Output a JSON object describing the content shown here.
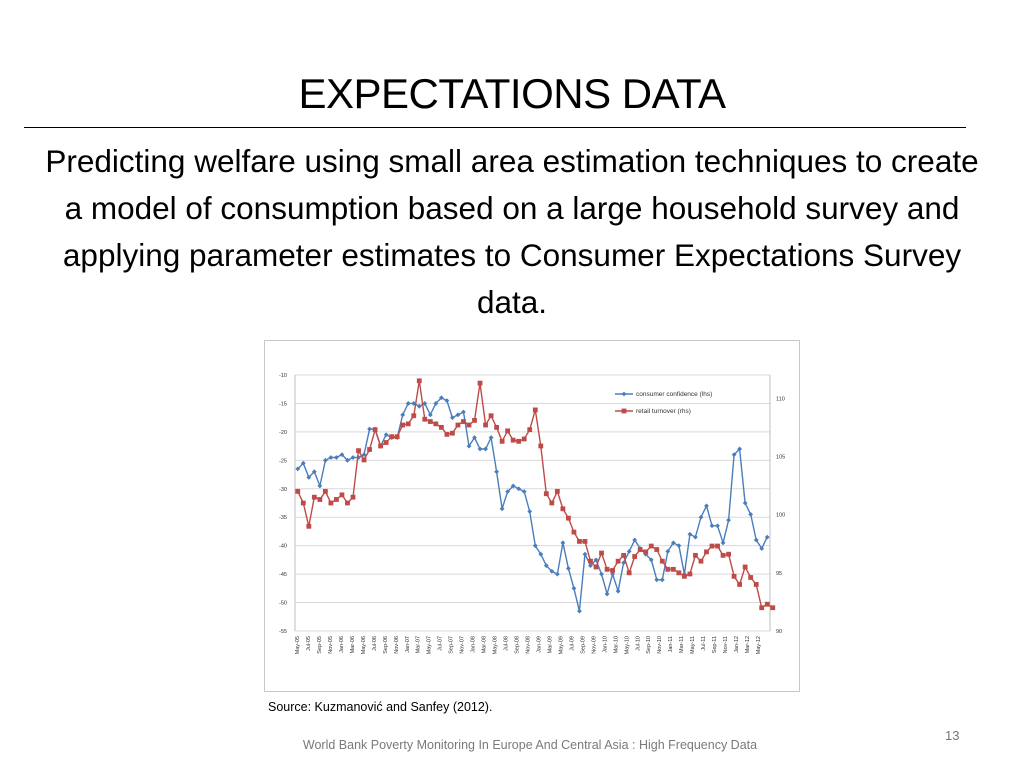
{
  "slide": {
    "title": "EXPECTATIONS DATA",
    "subtitle": "Predicting welfare using small area estimation techniques to create a model of consumption based on a large household survey and applying parameter estimates to Consumer Expectations Survey data.",
    "source": "Source:   Kuzmanović and Sanfey (2012).",
    "page_number": "13",
    "footer": "World Bank Poverty Monitoring In Europe And Central Asia : High Frequency Data"
  },
  "chart_data": {
    "type": "line",
    "x_tick_labels": [
      "May-05",
      "Jul-05",
      "Sep-05",
      "Nov-05",
      "Jan-06",
      "Mar-06",
      "May-06",
      "Jul-06",
      "Sep-06",
      "Nov-06",
      "Jan-07",
      "Mar-07",
      "May-07",
      "Jul-07",
      "Sep-07",
      "Nov-07",
      "Jan-08",
      "Mar-08",
      "May-08",
      "Jul-08",
      "Sep-08",
      "Nov-08",
      "Jan-09",
      "Mar-09",
      "May-09",
      "Jul-09",
      "Sep-09",
      "Nov-09",
      "Jan-10",
      "Mar-10",
      "May-10",
      "Jul-10",
      "Sep-10",
      "Nov-10",
      "Jan-11",
      "Mar-11",
      "May-11",
      "Jul-11",
      "Sep-11",
      "Nov-11",
      "Jan-12",
      "Mar-12",
      "May-12"
    ],
    "y_left": {
      "min": -55,
      "max": -10,
      "ticks": [
        -10,
        -15,
        -20,
        -25,
        -30,
        -35,
        -40,
        -45,
        -50,
        -55
      ]
    },
    "y_right": {
      "min": 90,
      "max": 112,
      "ticks": [
        110,
        105,
        100,
        95,
        90
      ]
    },
    "grid": true,
    "legend_position": "top-right",
    "series": [
      {
        "name": "consumer confidence (lhs)",
        "axis": "left",
        "color": "#4a7ebb",
        "marker": "diamond",
        "values": [
          -26.5,
          -25.5,
          -28.0,
          -27.0,
          -29.5,
          -25.0,
          -24.5,
          -24.5,
          -24.0,
          -25.0,
          -24.5,
          -24.5,
          -24.0,
          -19.5,
          -19.5,
          -22.5,
          -20.5,
          -21.0,
          -21.0,
          -17.0,
          -15.0,
          -15.0,
          -15.5,
          -15.0,
          -17.0,
          -15.0,
          -14.0,
          -14.5,
          -17.5,
          -17.0,
          -16.5,
          -22.5,
          -21.0,
          -23.0,
          -23.0,
          -21.0,
          -27.0,
          -33.5,
          -30.5,
          -29.5,
          -30.0,
          -30.5,
          -34.0,
          -40.0,
          -41.5,
          -43.5,
          -44.5,
          -45.0,
          -39.5,
          -44.0,
          -47.5,
          -51.5,
          -41.5,
          -43.5,
          -42.5,
          -45.0,
          -48.5,
          -45.0,
          -48.0,
          -43.0,
          -41.0,
          -39.0,
          -40.5,
          -41.5,
          -42.5,
          -46.0,
          -46.0,
          -41.0,
          -39.5,
          -40.0,
          -45.0,
          -38.0,
          -38.5,
          -35.0,
          -33.0,
          -36.5,
          -36.5,
          -39.5,
          -35.5,
          -24.0,
          -23.0,
          -32.5,
          -34.5,
          -39.0,
          -40.5,
          -38.5
        ]
      },
      {
        "name": "retail turnover (rhs)",
        "axis": "right",
        "color": "#be4b48",
        "marker": "square",
        "values": [
          102.0,
          101.0,
          99.0,
          101.5,
          101.3,
          102.0,
          101.0,
          101.3,
          101.7,
          101.0,
          101.5,
          105.5,
          104.7,
          105.6,
          107.3,
          105.9,
          106.2,
          106.7,
          106.7,
          107.7,
          107.8,
          108.5,
          111.5,
          108.2,
          108.0,
          107.8,
          107.5,
          106.9,
          107.0,
          107.7,
          108.0,
          107.7,
          108.1,
          111.3,
          107.7,
          108.5,
          107.5,
          106.3,
          107.2,
          106.4,
          106.3,
          106.5,
          107.3,
          109.0,
          105.9,
          101.8,
          101.0,
          102.0,
          100.5,
          99.7,
          98.5,
          97.7,
          97.7,
          96.0,
          95.5,
          96.7,
          95.3,
          95.2,
          96.0,
          96.5,
          95.0,
          96.4,
          97.0,
          96.8,
          97.3,
          97.0,
          96.0,
          95.3,
          95.3,
          95.0,
          94.7,
          94.9,
          96.5,
          96.0,
          96.8,
          97.3,
          97.3,
          96.5,
          96.6,
          94.7,
          94.0,
          95.5,
          94.6,
          94.0,
          92.0,
          92.3,
          92.0
        ]
      }
    ]
  }
}
